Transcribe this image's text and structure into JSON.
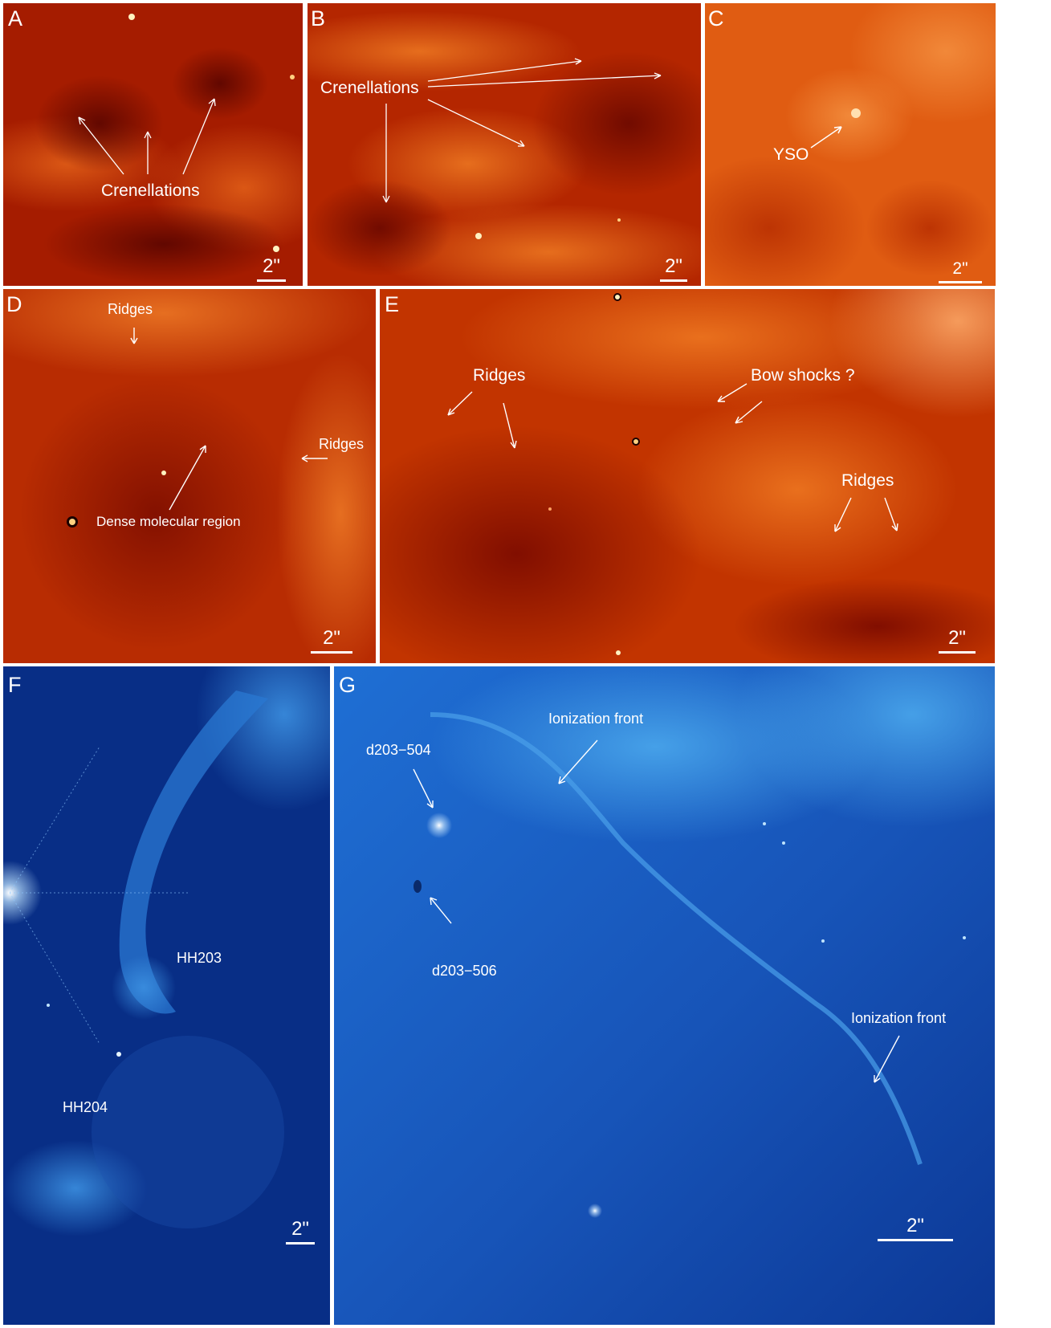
{
  "figure": {
    "scale_text": "2\"",
    "panels": [
      {
        "id": "A",
        "label": "A",
        "annotations": [
          "Crenellations"
        ]
      },
      {
        "id": "B",
        "label": "B",
        "annotations": [
          "Crenellations"
        ]
      },
      {
        "id": "C",
        "label": "C",
        "annotations": [
          "YSO"
        ]
      },
      {
        "id": "D",
        "label": "D",
        "annotations": [
          "Ridges",
          "Ridges",
          "Dense molecular region"
        ]
      },
      {
        "id": "E",
        "label": "E",
        "annotations": [
          "Ridges",
          "Bow shocks ?",
          "Ridges"
        ]
      },
      {
        "id": "F",
        "label": "F",
        "annotations": [
          "HH203",
          "HH204"
        ]
      },
      {
        "id": "G",
        "label": "G",
        "annotations": [
          "Ionization front",
          "d203−504",
          "d203−506",
          "Ionization front"
        ]
      }
    ]
  },
  "colors": {
    "infrared_dark": "#7a0a00",
    "infrared_mid": "#c22a00",
    "infrared_bright": "#f07a1c",
    "optical_dark": "#06297e",
    "optical_mid": "#1a63c8",
    "optical_bright": "#4aa7ec",
    "annotation": "#ffffff"
  }
}
